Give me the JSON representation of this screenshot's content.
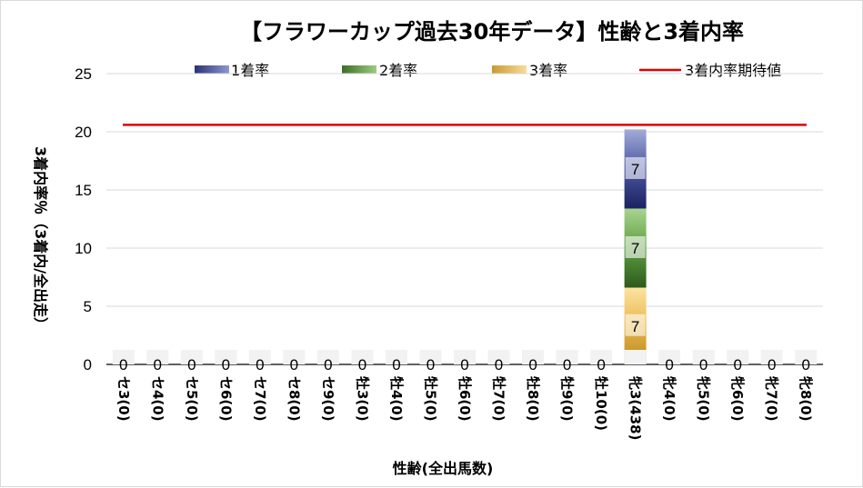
{
  "chart_data": {
    "type": "bar",
    "stacked": true,
    "title": "【フラワーカップ過去30年データ】性齢と3着内率",
    "xlabel": "性齢(全出馬数)",
    "ylabel": "3着内率％（3着内/全出走）",
    "ylim": [
      0,
      25
    ],
    "yticks": [
      "0",
      "5",
      "10",
      "15",
      "20",
      "25"
    ],
    "grid": true,
    "legend_position": "top",
    "categories": [
      "セ3(0)",
      "セ4(0)",
      "セ5(0)",
      "セ6(0)",
      "セ7(0)",
      "セ8(0)",
      "セ9(0)",
      "牡3(0)",
      "牡4(0)",
      "牡5(0)",
      "牡6(0)",
      "牡7(0)",
      "牡8(0)",
      "牡9(0)",
      "牡10(0)",
      "牝3(438)",
      "牝4(0)",
      "牝5(0)",
      "牝6(0)",
      "牝7(0)",
      "牝8(0)"
    ],
    "series": [
      {
        "name": "1着率",
        "color": "#4a56a0",
        "values": [
          0,
          0,
          0,
          0,
          0,
          0,
          0,
          0,
          0,
          0,
          0,
          0,
          0,
          0,
          0,
          6.8,
          0,
          0,
          0,
          0,
          0
        ]
      },
      {
        "name": "2着率",
        "color": "#5e9e40",
        "values": [
          0,
          0,
          0,
          0,
          0,
          0,
          0,
          0,
          0,
          0,
          0,
          0,
          0,
          0,
          0,
          6.8,
          0,
          0,
          0,
          0,
          0
        ]
      },
      {
        "name": "3着率",
        "color": "#e8b64a",
        "values": [
          0,
          0,
          0,
          0,
          0,
          0,
          0,
          0,
          0,
          0,
          0,
          0,
          0,
          0,
          0,
          6.6,
          0,
          0,
          0,
          0,
          0
        ]
      }
    ],
    "data_labels": [
      "0",
      "0",
      "0",
      "0",
      "0",
      "0",
      "0",
      "0",
      "0",
      "0",
      "0",
      "0",
      "0",
      "0",
      "0",
      "",
      "0",
      "0",
      "0",
      "0",
      "0"
    ],
    "stack_labels": {
      "1着率": "7",
      "2着率": "7",
      "3着率": "7"
    },
    "reference_line": {
      "name": "3着内率期待値",
      "value": 20.6,
      "color": "#e00000"
    }
  }
}
